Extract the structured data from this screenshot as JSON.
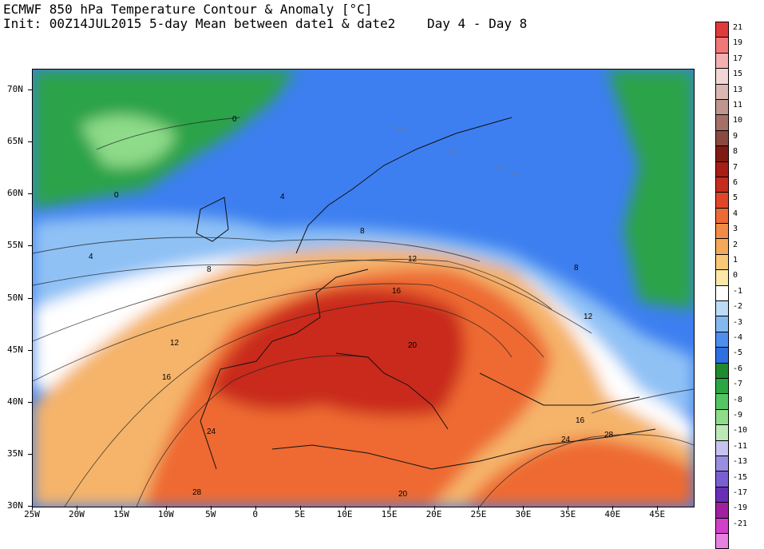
{
  "header": {
    "title": "ECMWF 850 hPa Temperature Contour & Anomaly [°C]",
    "init": "Init: 00Z14JUL2015 5-day Mean between date1 & date2",
    "period": "Day 4 - Day 8"
  },
  "map": {
    "projection": "equirectangular",
    "lon_range": [
      -25,
      49
    ],
    "lat_range": [
      30,
      72
    ],
    "lat_labels": [
      "70N",
      "65N",
      "60N",
      "55N",
      "50N",
      "45N",
      "40N",
      "35N",
      "30N"
    ],
    "lon_labels": [
      "25W",
      "20W",
      "15W",
      "10W",
      "5W",
      "0",
      "5E",
      "10E",
      "15E",
      "20E",
      "25E",
      "30E",
      "35E",
      "40E",
      "45E"
    ],
    "contour_labels": [
      "0",
      "0",
      "4",
      "4",
      "8",
      "8",
      "8",
      "12",
      "12",
      "12",
      "16",
      "16",
      "20",
      "24",
      "24",
      "28",
      "28",
      "20",
      "16"
    ],
    "shading_colors": {
      "warm_core": "#c92a1a",
      "warm_mid": "#ee6a32",
      "warm_light": "#f5b46a",
      "neutral": "#ffffff",
      "cool_light": "#8fc1f5",
      "cool_mid": "#3d7ff0",
      "cold": "#2ba34a"
    }
  },
  "colorbar": {
    "labels": [
      "21",
      "19",
      "17",
      "15",
      "13",
      "11",
      "10",
      "9",
      "8",
      "7",
      "6",
      "5",
      "4",
      "3",
      "2",
      "1",
      "0",
      "-1",
      "-2",
      "-3",
      "-4",
      "-5",
      "-6",
      "-7",
      "-8",
      "-9",
      "-10",
      "-11",
      "-13",
      "-15",
      "-17",
      "-19",
      "-21"
    ],
    "colors": [
      "#e03b3b",
      "#f07878",
      "#f4b0b0",
      "#f2d6d6",
      "#d9b7b3",
      "#c09590",
      "#a47068",
      "#8a4a3f",
      "#7e1b12",
      "#a61e14",
      "#c52c1e",
      "#e0452a",
      "#ec6a36",
      "#f28b45",
      "#f5a85a",
      "#f8c878",
      "#fbe8a8",
      "#ffffff",
      "#bcdbf6",
      "#86b8f0",
      "#4c8fee",
      "#2f6fe0",
      "#1f8a2e",
      "#2ca645",
      "#55c464",
      "#8edc8a",
      "#bde9b8",
      "#c6c3ee",
      "#9a8ee0",
      "#7a5fd2",
      "#6a2fb8",
      "#a020a0",
      "#d040c8",
      "#e880e0"
    ]
  }
}
